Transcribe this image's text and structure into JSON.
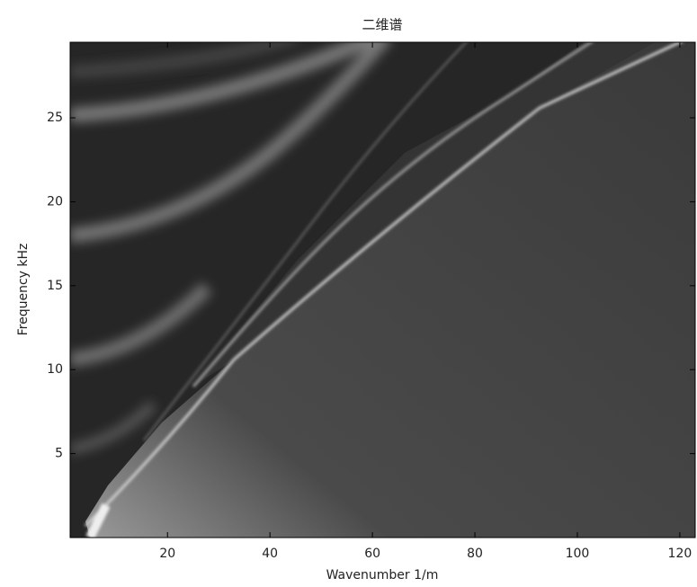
{
  "chart_data": {
    "type": "image",
    "title": "二维谱",
    "xlabel": "Wavenumber 1/m",
    "ylabel": "Frequency kHz",
    "xlim": [
      1,
      123
    ],
    "ylim": [
      0,
      29.5
    ],
    "xticks": [
      20,
      40,
      60,
      80,
      100,
      120
    ],
    "yticks": [
      5,
      10,
      15,
      20,
      25
    ]
  }
}
